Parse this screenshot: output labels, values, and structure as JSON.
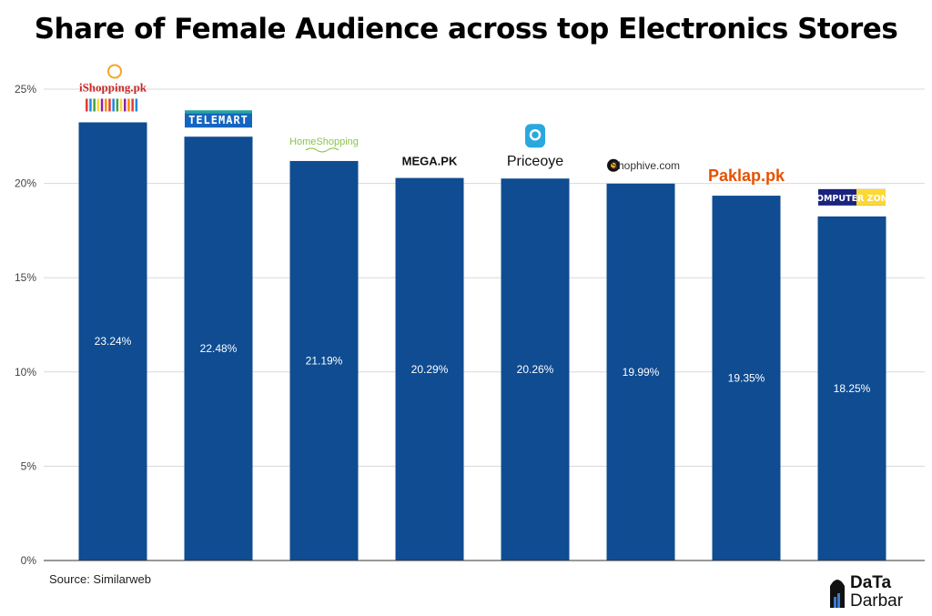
{
  "chart_data": {
    "type": "bar",
    "title": "Share of Female Audience across top Electronics Stores",
    "categories": [
      "iShopping.pk",
      "Telemart",
      "HomeShopping",
      "MEGA.PK",
      "Priceoye",
      "Shophive.com",
      "Paklap.pk",
      "Computer Zone"
    ],
    "values": [
      23.24,
      22.48,
      21.19,
      20.29,
      20.26,
      19.99,
      19.35,
      18.25
    ],
    "data_labels": [
      "23.24%",
      "22.48%",
      "21.19%",
      "20.29%",
      "20.26%",
      "19.99%",
      "19.35%",
      "18.25%"
    ],
    "ylim": [
      0,
      25
    ],
    "yticks": [
      0,
      5,
      10,
      15,
      20,
      25
    ],
    "ytick_labels": [
      "0%",
      "5%",
      "10%",
      "15%",
      "20%",
      "25%"
    ],
    "xlabel": "",
    "ylabel": "",
    "grid": true,
    "bar_color": "#0f4c92",
    "logos": [
      "iShopping.pk",
      "TELEMART",
      "HomeShopping",
      "MEGA.PK",
      "Priceoye",
      "Shophive.com",
      "Paklap.pk",
      "COMPUTER ZONE"
    ]
  },
  "source": "Source: Similarweb",
  "brand": {
    "line1": "DaTa",
    "line2": "Darbar"
  },
  "colors": {
    "bar": "#0f4c92",
    "grid": "#d9d9d9",
    "axis": "#333333"
  }
}
